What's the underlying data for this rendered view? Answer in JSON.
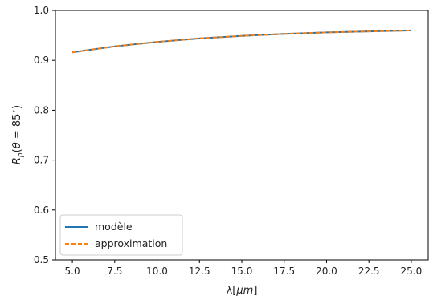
{
  "chart_data": {
    "type": "line",
    "xlabel": "λ[μm]",
    "ylabel": "R_p(θ = 85°)",
    "xlim": [
      4.0,
      26.0
    ],
    "ylim": [
      0.5,
      1.0
    ],
    "xticks": [
      5.0,
      7.5,
      10.0,
      12.5,
      15.0,
      17.5,
      20.0,
      22.5,
      25.0
    ],
    "xtick_labels": [
      "5.0",
      "7.5",
      "10.0",
      "12.5",
      "15.0",
      "17.5",
      "20.0",
      "22.5",
      "25.0"
    ],
    "yticks": [
      0.5,
      0.6,
      0.7,
      0.8,
      0.9,
      1.0
    ],
    "ytick_labels": [
      "0.5",
      "0.6",
      "0.7",
      "0.8",
      "0.9",
      "1.0"
    ],
    "grid": false,
    "legend_position": "lower-left",
    "x": [
      5.0,
      6.0,
      7.5,
      10.0,
      12.5,
      15.0,
      17.5,
      20.0,
      22.5,
      25.0
    ],
    "series": [
      {
        "name": "modèle",
        "style": "solid",
        "color": "#1f77b4",
        "values": [
          0.916,
          0.921,
          0.928,
          0.937,
          0.944,
          0.949,
          0.953,
          0.956,
          0.958,
          0.96
        ]
      },
      {
        "name": "approximation",
        "style": "dashed",
        "color": "#ff7f0e",
        "values": [
          0.916,
          0.921,
          0.928,
          0.937,
          0.944,
          0.949,
          0.953,
          0.956,
          0.958,
          0.96
        ]
      }
    ]
  }
}
